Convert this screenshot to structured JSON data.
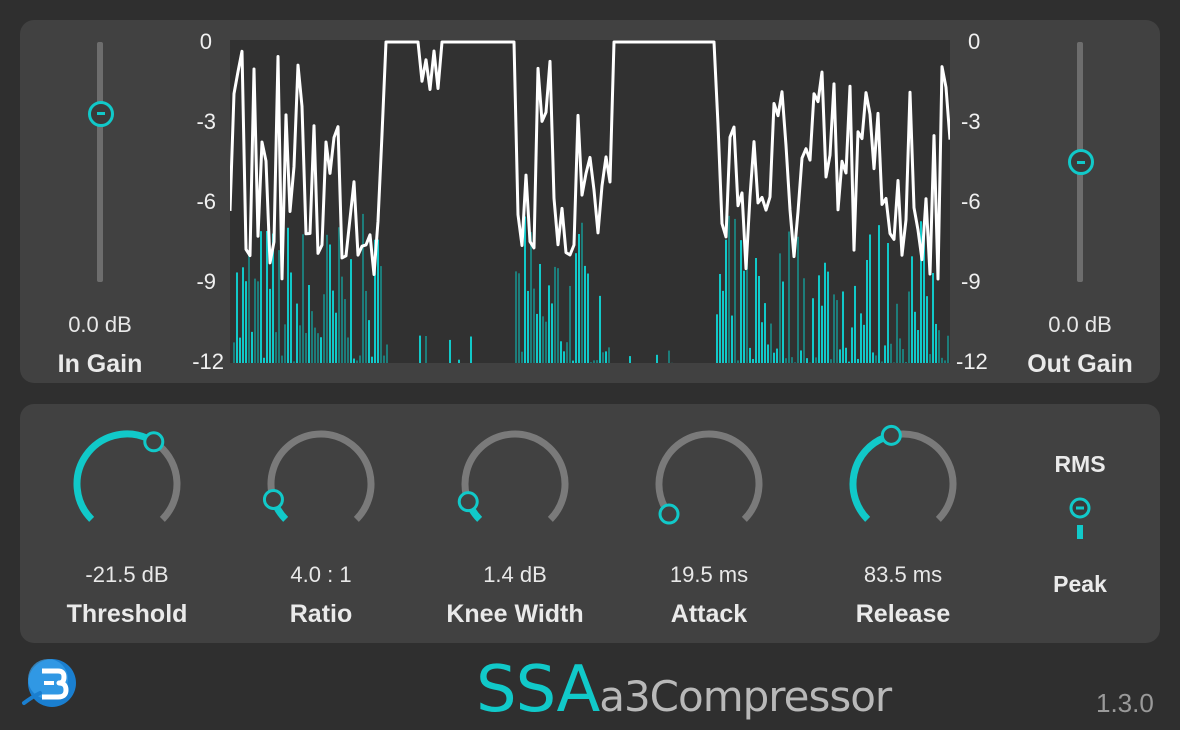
{
  "app": {
    "title_prefix": "SSA",
    "title_suffix": "a3Compressor",
    "version": "1.3.0",
    "logo": "blue-3-logo-icon",
    "accent": "#11c9c9"
  },
  "meter": {
    "left_ticks": [
      "0",
      "-3",
      "-6",
      "-9",
      "-12"
    ],
    "right_ticks": [
      "0",
      "-3",
      "-6",
      "-9",
      "-12"
    ]
  },
  "in_gain": {
    "value": "0.0 dB",
    "label": "In Gain",
    "level": 0.72
  },
  "out_gain": {
    "value": "0.0 dB",
    "label": "Out Gain",
    "level": 0.5
  },
  "knobs": [
    {
      "id": "threshold",
      "value": "-21.5 dB",
      "label": "Threshold",
      "fraction": 0.62
    },
    {
      "id": "ratio",
      "value": "4.0 : 1",
      "label": "Ratio",
      "fraction": 0.1
    },
    {
      "id": "knee-width",
      "value": "1.4 dB",
      "label": "Knee Width",
      "fraction": 0.09
    },
    {
      "id": "attack",
      "value": "19.5 ms",
      "label": "Attack",
      "fraction": 0.03
    },
    {
      "id": "release",
      "value": "83.5 ms",
      "label": "Release",
      "fraction": 0.45
    }
  ],
  "detection": {
    "top_label": "RMS",
    "bottom_label": "Peak",
    "selected": "RMS"
  }
}
